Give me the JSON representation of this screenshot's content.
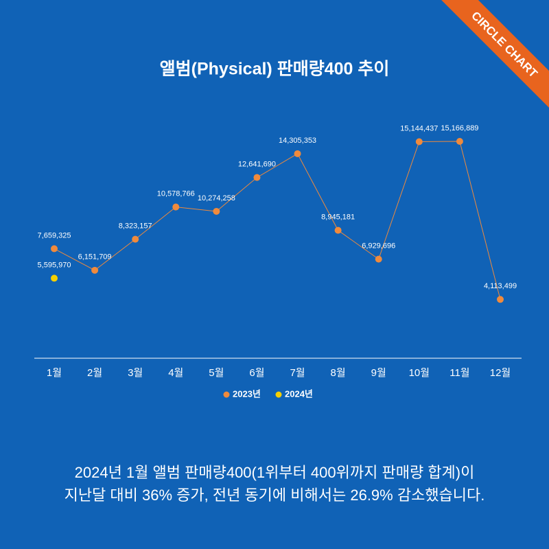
{
  "badge": "CIRCLE CHART",
  "chart_data": {
    "type": "line",
    "title": "앨범(Physical) 판매량400 추이",
    "categories": [
      "1월",
      "2월",
      "3월",
      "4월",
      "5월",
      "6월",
      "7월",
      "8월",
      "9월",
      "10월",
      "11월",
      "12월"
    ],
    "series": [
      {
        "name": "2023년",
        "color": "#f08a3c",
        "values": [
          7659325,
          6151709,
          8323157,
          10578766,
          10274258,
          12641690,
          14305353,
          8945181,
          6929696,
          15144437,
          15166889,
          4113499
        ],
        "value_labels": [
          "7,659,325",
          "6,151,709",
          "8,323,157",
          "10,578,766",
          "10,274,258",
          "12,641,690",
          "14,305,353",
          "8,945,181",
          "6,929,696",
          "15,144,437",
          "15,166,889",
          "4,113,499"
        ]
      },
      {
        "name": "2024년",
        "color": "#f5d000",
        "values": [
          5595970,
          null,
          null,
          null,
          null,
          null,
          null,
          null,
          null,
          null,
          null,
          null
        ],
        "value_labels": [
          "5,595,970",
          null,
          null,
          null,
          null,
          null,
          null,
          null,
          null,
          null,
          null,
          null
        ]
      }
    ],
    "ylim": [
      0,
      18000000
    ]
  },
  "footer": [
    "2024년 1월 앨범 판매량400(1위부터 400위까지 판매량 합계)이",
    "지난달 대비 36% 증가, 전년 동기에 비해서는 26.9% 감소했습니다."
  ]
}
